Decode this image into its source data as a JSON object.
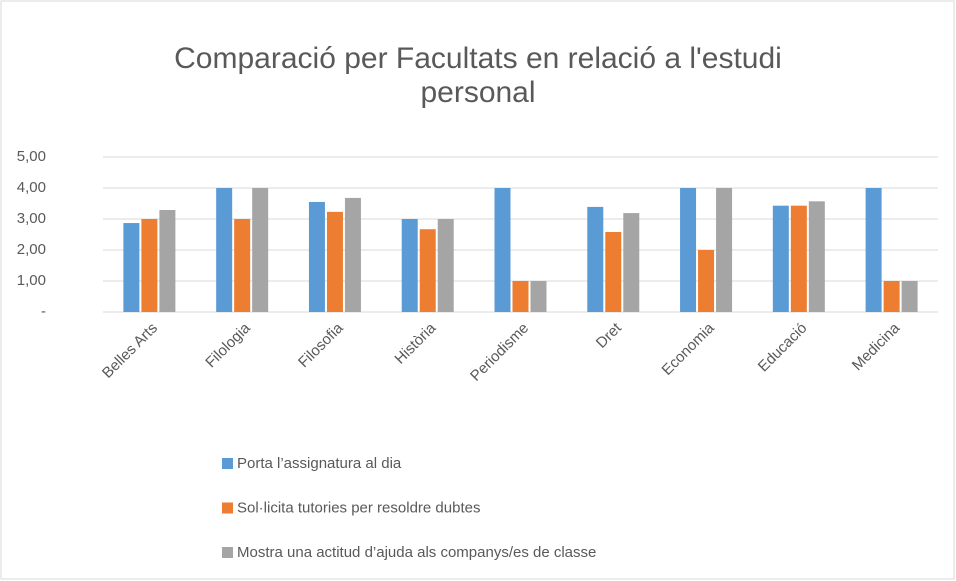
{
  "chart_data": {
    "type": "bar",
    "title": "Comparació per Facultats en relació a l'estudi personal",
    "categories": [
      "Belles Arts",
      "Filologia",
      "Filosofia",
      "Història",
      "Periodisme",
      "Dret",
      "Economia",
      "Educació",
      "Medicina"
    ],
    "series": [
      {
        "name": "Porta l’assignatura al dia",
        "color": "#5b9bd5",
        "values": [
          2.87,
          4,
          3.55,
          3,
          4,
          3.39,
          4,
          3.43,
          4
        ]
      },
      {
        "name": "Sol·licita tutories per resoldre dubtes",
        "color": "#ed7d31",
        "values": [
          3,
          3,
          3.23,
          2.67,
          1,
          2.58,
          2,
          3.43,
          1
        ]
      },
      {
        "name": "Mostra una actitud d’ajuda als companys/es de classe",
        "color": "#a5a5a5",
        "values": [
          3.29,
          4,
          3.68,
          3,
          1,
          3.19,
          4,
          3.57,
          1
        ]
      }
    ],
    "ylim": [
      0,
      5
    ],
    "yticks": [
      {
        "value": 0,
        "label": "-"
      },
      {
        "value": 1,
        "label": "1,00"
      },
      {
        "value": 2,
        "label": "2,00"
      },
      {
        "value": 3,
        "label": "3,00"
      },
      {
        "value": 4,
        "label": "4,00"
      },
      {
        "value": 5,
        "label": "5,00"
      }
    ],
    "grid": true
  }
}
